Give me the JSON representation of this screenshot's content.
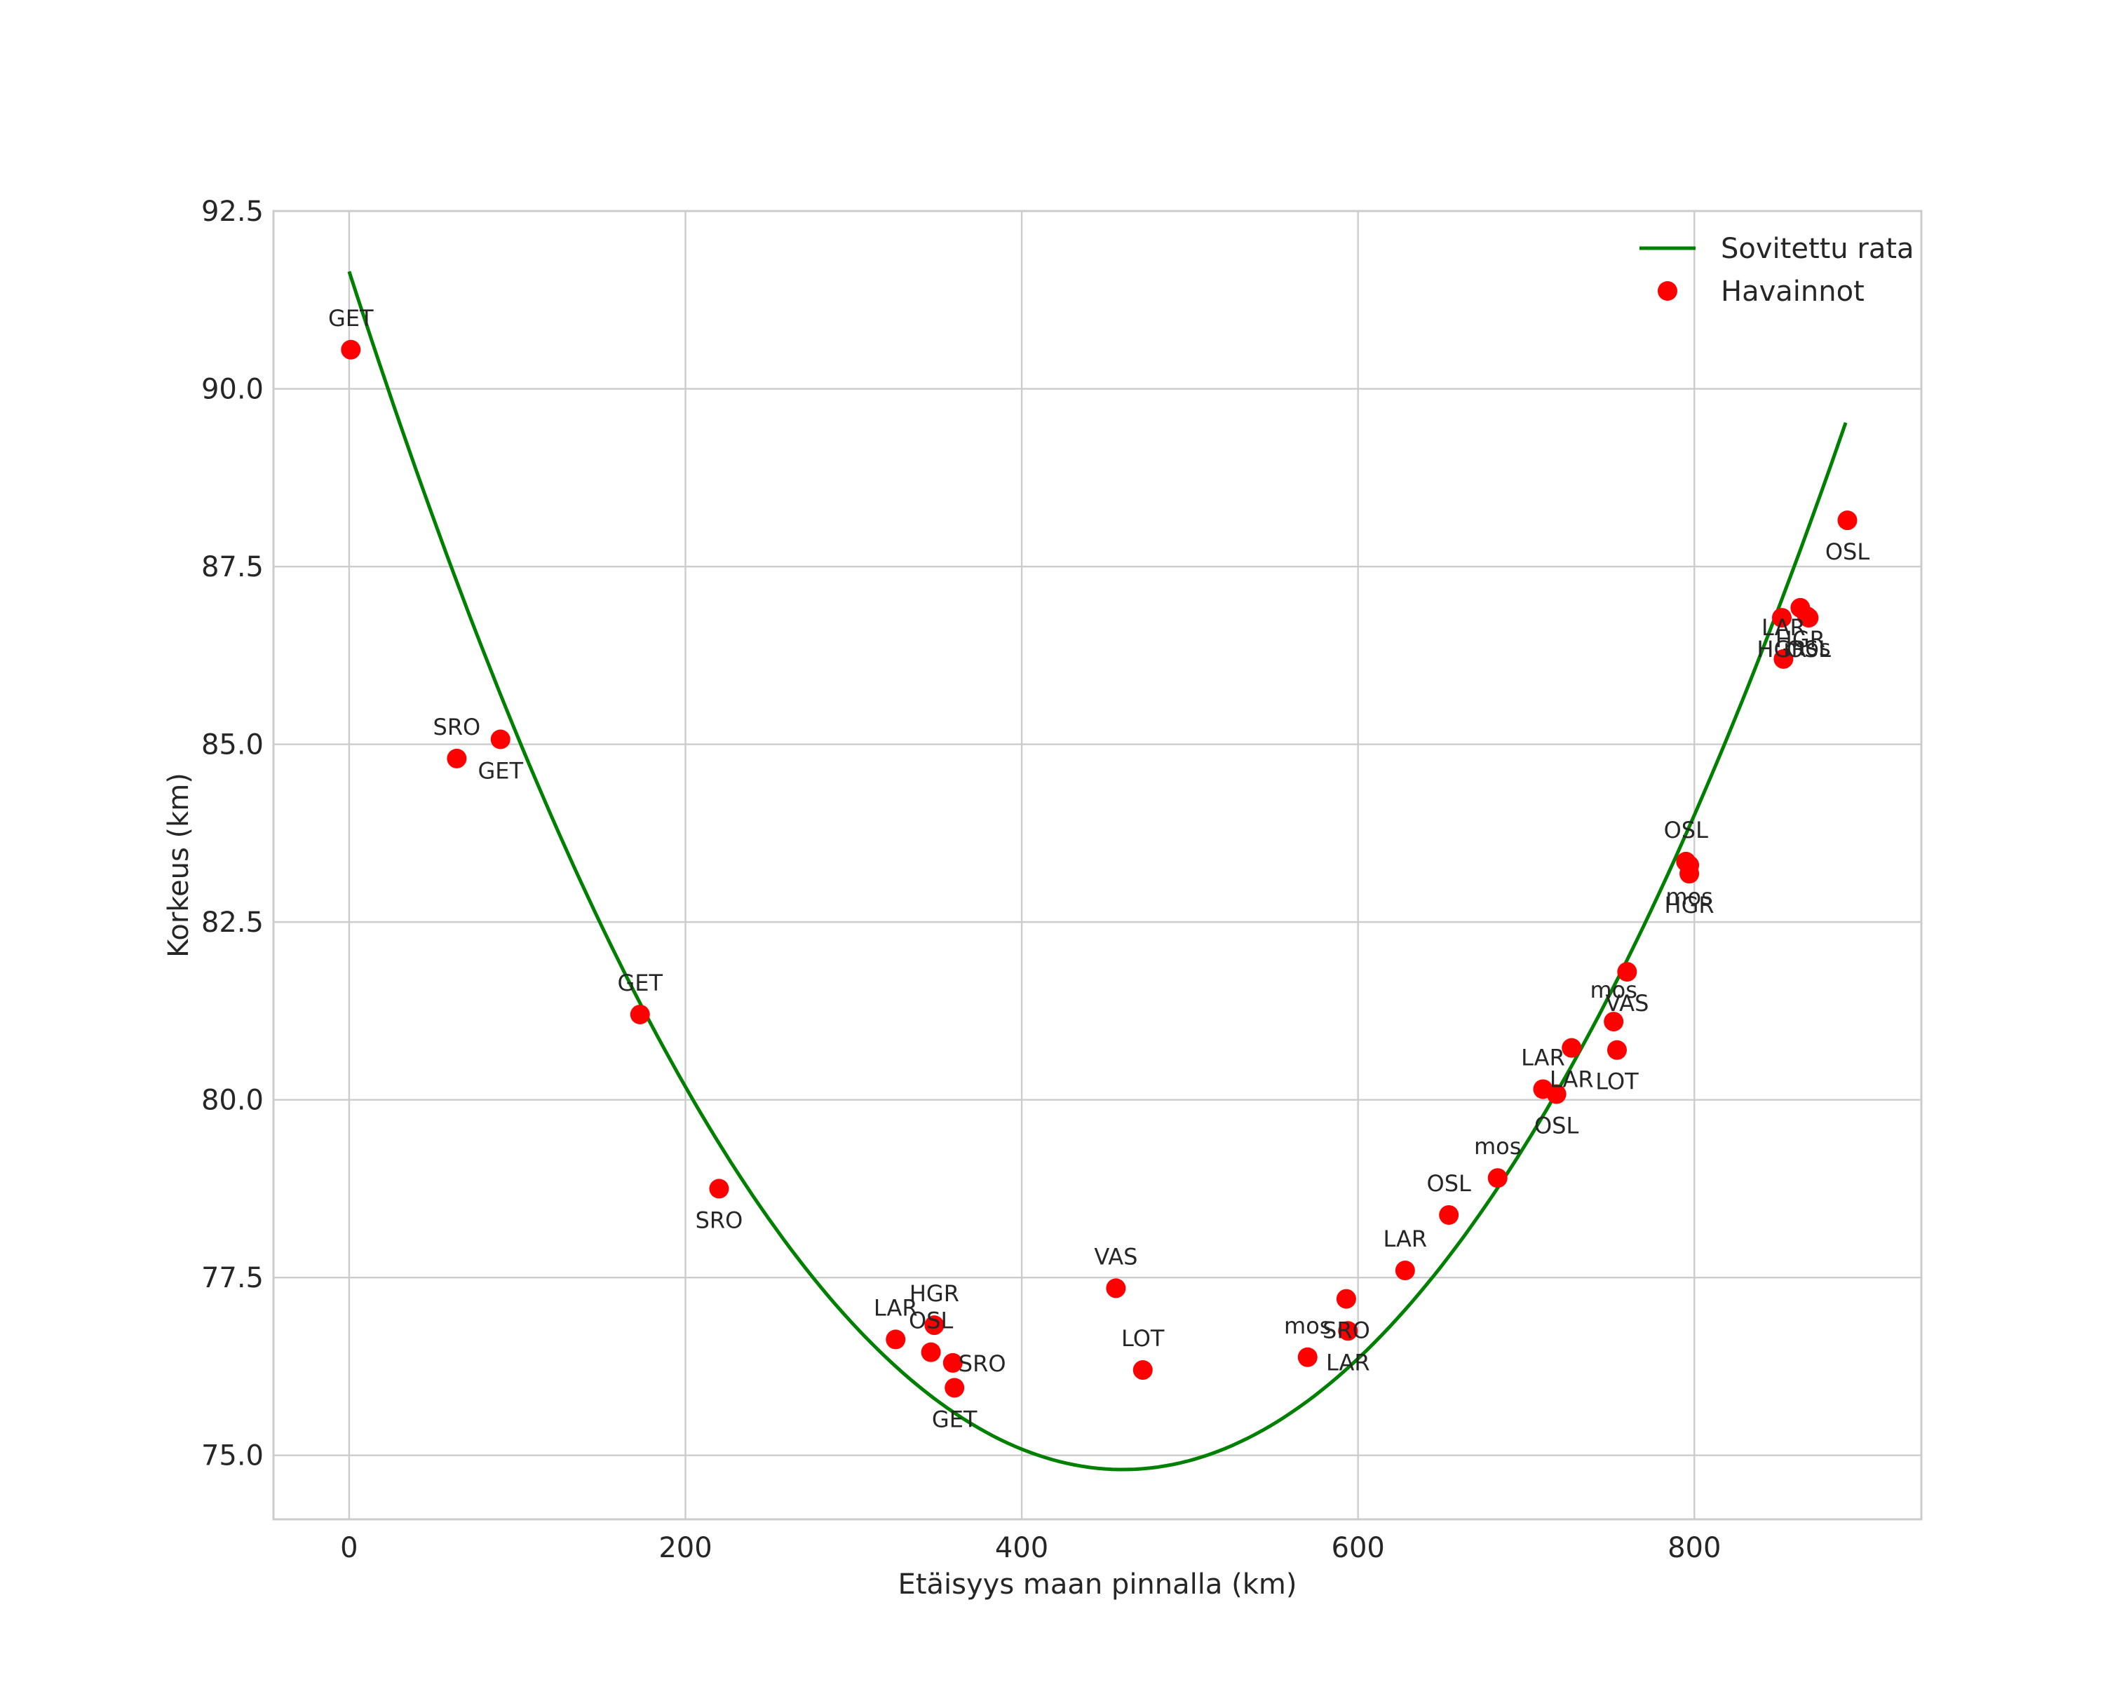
{
  "chart_data": {
    "type": "scatter",
    "title": "",
    "xlabel": "Etäisyys maan pinnalla (km)",
    "ylabel": "Korkeus (km)",
    "xlim": [
      -45,
      935
    ],
    "ylim": [
      74.1,
      92.5
    ],
    "xticks": [
      0,
      200,
      400,
      600,
      800
    ],
    "yticks": [
      75.0,
      77.5,
      80.0,
      82.5,
      85.0,
      87.5,
      90.0,
      92.5
    ],
    "xtick_labels": [
      "0",
      "200",
      "400",
      "600",
      "800"
    ],
    "ytick_labels": [
      "75.0",
      "77.5",
      "80.0",
      "82.5",
      "85.0",
      "87.5",
      "90.0",
      "92.5"
    ],
    "grid": true,
    "legend": {
      "placement": "top-right",
      "entries": [
        {
          "label": "Sovitettu rata",
          "kind": "line",
          "color": "#008000"
        },
        {
          "label": "Havainnot",
          "kind": "marker",
          "color": "#ff0000"
        }
      ]
    },
    "series": [
      {
        "name": "Sovitettu rata",
        "kind": "line",
        "color": "#008000",
        "model": "quadratic",
        "x_range": [
          0,
          890
        ],
        "vertex": {
          "x": 460,
          "y": 74.8
        },
        "start_y": 91.65
      },
      {
        "name": "Havainnot",
        "kind": "scatter",
        "color": "#ff0000",
        "points": [
          {
            "x": 1,
            "y": 90.55,
            "label": "GET",
            "side": "above"
          },
          {
            "x": 64,
            "y": 84.8,
            "label": "SRO",
            "side": "above"
          },
          {
            "x": 90,
            "y": 85.07,
            "label": "GET",
            "side": "below"
          },
          {
            "x": 173,
            "y": 81.2,
            "label": "GET",
            "side": "above"
          },
          {
            "x": 220,
            "y": 78.75,
            "label": "SRO",
            "side": "below"
          },
          {
            "x": 325,
            "y": 76.63,
            "label": "LAR",
            "side": "above"
          },
          {
            "x": 348,
            "y": 76.83,
            "label": "HGR",
            "side": "above"
          },
          {
            "x": 346,
            "y": 76.45,
            "label": "OSL",
            "side": "above"
          },
          {
            "x": 359,
            "y": 76.3,
            "label": "SRO",
            "side": "right"
          },
          {
            "x": 360,
            "y": 75.95,
            "label": "GET",
            "side": "below"
          },
          {
            "x": 456,
            "y": 77.35,
            "label": "VAS",
            "side": "above"
          },
          {
            "x": 472,
            "y": 76.2,
            "label": "LOT",
            "side": "above"
          },
          {
            "x": 570,
            "y": 76.38,
            "label": "mos",
            "side": "above"
          },
          {
            "x": 593,
            "y": 77.2,
            "label": "SRO",
            "side": "below"
          },
          {
            "x": 594,
            "y": 76.75,
            "label": "LAR",
            "side": "below"
          },
          {
            "x": 628,
            "y": 77.6,
            "label": "LAR",
            "side": "above"
          },
          {
            "x": 654,
            "y": 78.38,
            "label": "OSL",
            "side": "above"
          },
          {
            "x": 683,
            "y": 78.9,
            "label": "mos",
            "side": "above"
          },
          {
            "x": 710,
            "y": 80.15,
            "label": "LAR",
            "side": "above"
          },
          {
            "x": 718,
            "y": 80.08,
            "label": "OSL",
            "side": "below"
          },
          {
            "x": 727,
            "y": 80.73,
            "label": "LAR",
            "side": "below"
          },
          {
            "x": 752,
            "y": 81.1,
            "label": "mos",
            "side": "above"
          },
          {
            "x": 754,
            "y": 80.7,
            "label": "LOT",
            "side": "below"
          },
          {
            "x": 760,
            "y": 81.8,
            "label": "VAS",
            "side": "below"
          },
          {
            "x": 795,
            "y": 83.35,
            "label": "OSL",
            "side": "above"
          },
          {
            "x": 797,
            "y": 83.18,
            "label": "HGR",
            "side": "below"
          },
          {
            "x": 797,
            "y": 83.3,
            "label": "mos",
            "side": "below"
          },
          {
            "x": 852,
            "y": 86.78,
            "label": "HGR",
            "side": "below"
          },
          {
            "x": 853,
            "y": 86.2,
            "label": "LAR",
            "side": "above"
          },
          {
            "x": 863,
            "y": 86.92,
            "label": "HGR",
            "side": "below"
          },
          {
            "x": 867,
            "y": 86.8,
            "label": "mos",
            "side": "below"
          },
          {
            "x": 868,
            "y": 86.78,
            "label": "OSL",
            "side": "below"
          },
          {
            "x": 891,
            "y": 88.15,
            "label": "OSL",
            "side": "below"
          }
        ]
      }
    ]
  }
}
